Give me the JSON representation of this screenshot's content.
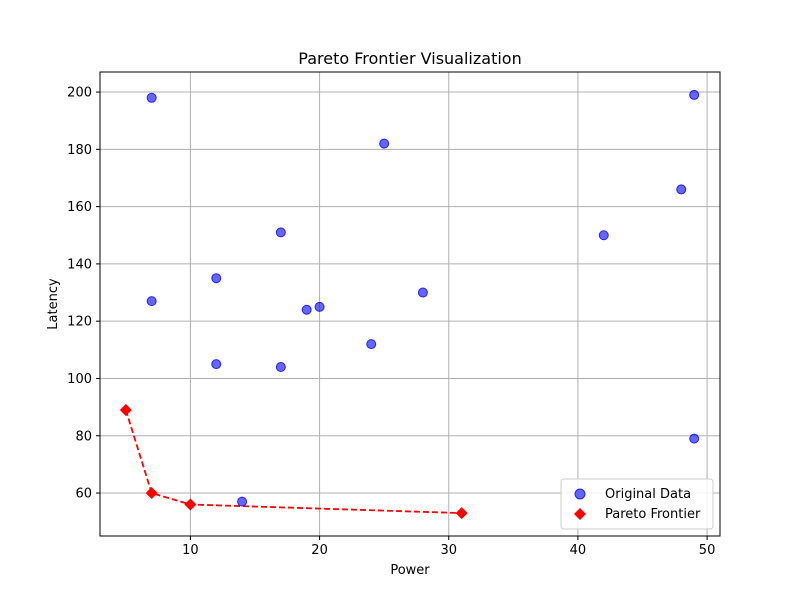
{
  "chart_data": {
    "type": "scatter",
    "title": "Pareto Frontier Visualization",
    "xlabel": "Power",
    "ylabel": "Latency",
    "xlim": [
      3,
      51
    ],
    "ylim": [
      45,
      207
    ],
    "xticks": [
      10,
      20,
      30,
      40,
      50
    ],
    "yticks": [
      60,
      80,
      100,
      120,
      140,
      160,
      180,
      200
    ],
    "grid": true,
    "legend_position": "lower-right",
    "series": [
      {
        "name": "Original Data",
        "marker": "circle",
        "color": "#0000ff",
        "points": [
          {
            "x": 7,
            "y": 198
          },
          {
            "x": 7,
            "y": 127
          },
          {
            "x": 12,
            "y": 135
          },
          {
            "x": 12,
            "y": 105
          },
          {
            "x": 14,
            "y": 57
          },
          {
            "x": 17,
            "y": 151
          },
          {
            "x": 17,
            "y": 104
          },
          {
            "x": 19,
            "y": 124
          },
          {
            "x": 20,
            "y": 125
          },
          {
            "x": 24,
            "y": 112
          },
          {
            "x": 25,
            "y": 182
          },
          {
            "x": 28,
            "y": 130
          },
          {
            "x": 42,
            "y": 150
          },
          {
            "x": 48,
            "y": 166
          },
          {
            "x": 49,
            "y": 199
          },
          {
            "x": 49,
            "y": 79
          }
        ]
      },
      {
        "name": "Pareto Frontier",
        "marker": "diamond",
        "color": "#ff0000",
        "line_style": "dashed",
        "points": [
          {
            "x": 5,
            "y": 89
          },
          {
            "x": 7,
            "y": 60
          },
          {
            "x": 10,
            "y": 56
          },
          {
            "x": 31,
            "y": 53
          }
        ]
      }
    ]
  }
}
